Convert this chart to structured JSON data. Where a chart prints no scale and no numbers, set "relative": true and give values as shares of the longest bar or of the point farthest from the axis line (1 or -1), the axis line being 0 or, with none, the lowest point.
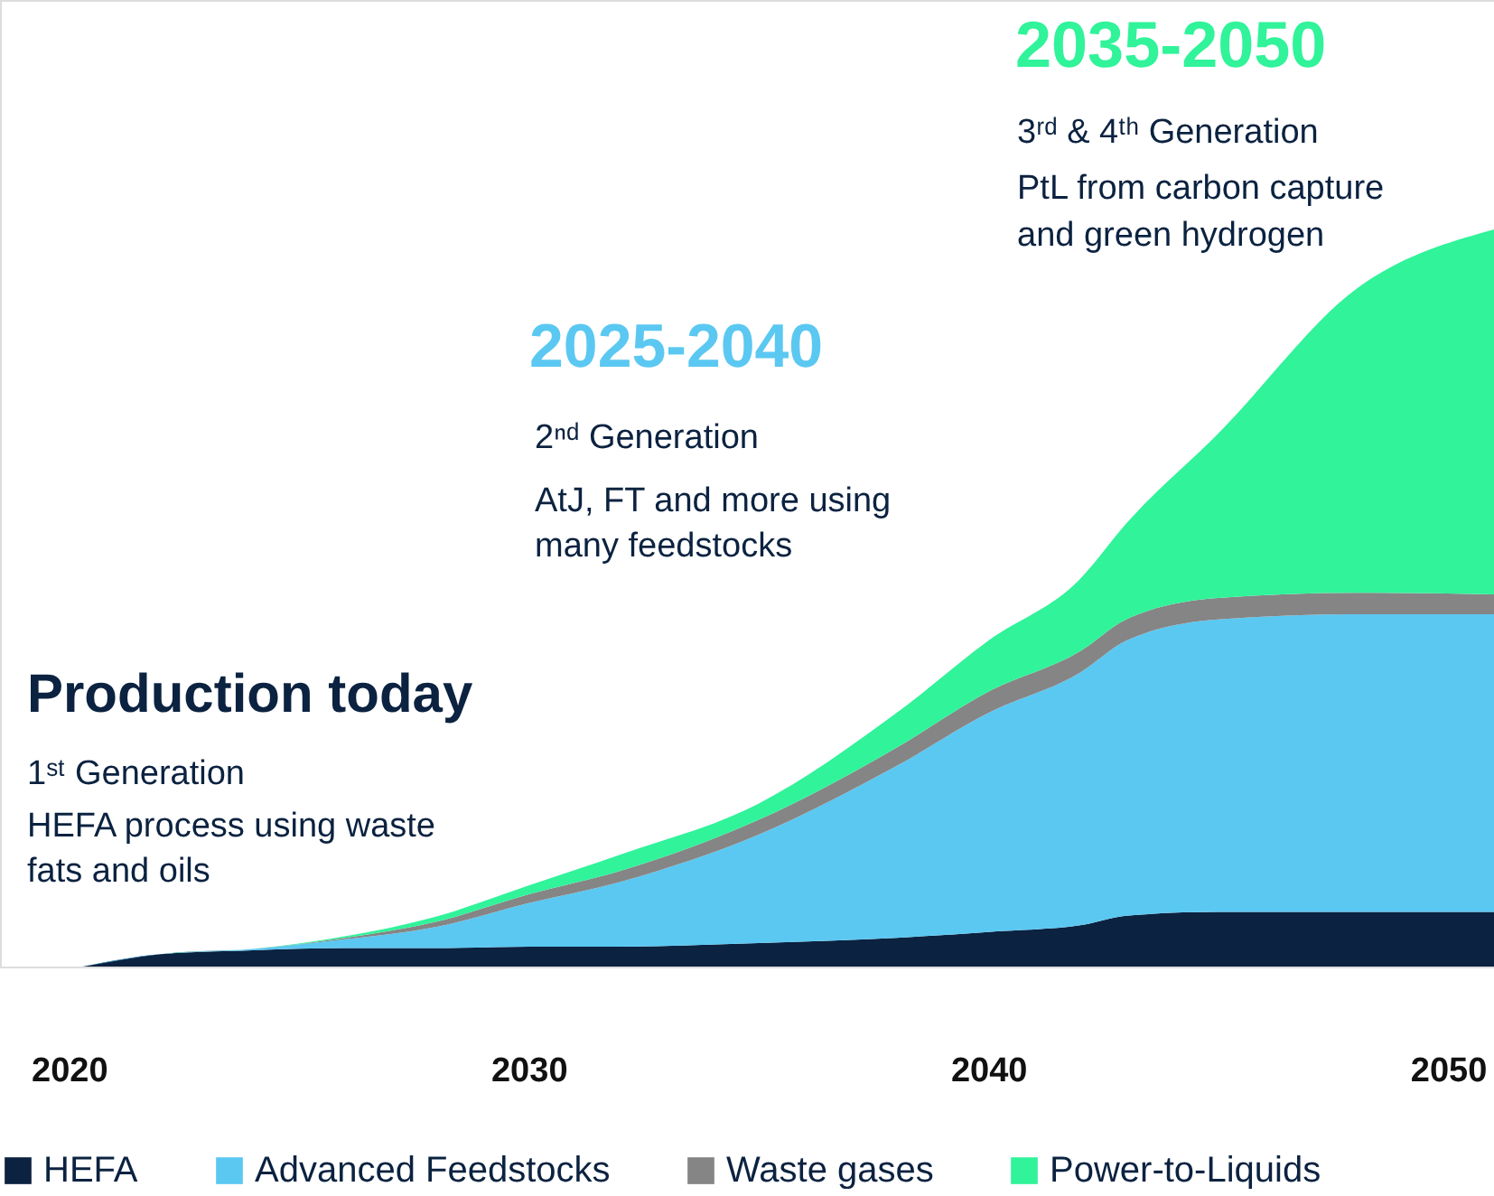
{
  "chart_data": {
    "type": "area",
    "stacked": true,
    "relative": true,
    "x": [
      2020.3,
      2022,
      2024,
      2026,
      2028,
      2030,
      2032,
      2035,
      2038,
      2040,
      2042,
      2043,
      2045,
      2048,
      2051
    ],
    "xlim": [
      2018.5,
      2051
    ],
    "xticks": [
      2020,
      2030,
      2040,
      2050
    ],
    "series": [
      {
        "name": "HEFA",
        "color": "#0b2240",
        "values": [
          0,
          0.017,
          0.022,
          0.025,
          0.025,
          0.027,
          0.027,
          0.032,
          0.039,
          0.047,
          0.056,
          0.069,
          0.074,
          0.074,
          0.074
        ]
      },
      {
        "name": "Advanced Feedstocks",
        "color": "#5bc8f2",
        "values": [
          0,
          0,
          0.002,
          0.012,
          0.029,
          0.059,
          0.088,
          0.147,
          0.233,
          0.297,
          0.343,
          0.373,
          0.397,
          0.404,
          0.404
        ]
      },
      {
        "name": "Waste gases",
        "color": "#858585",
        "values": [
          0,
          0,
          0,
          0.002,
          0.007,
          0.012,
          0.015,
          0.02,
          0.025,
          0.029,
          0.029,
          0.029,
          0.029,
          0.029,
          0.027
        ]
      },
      {
        "name": "Power-to-Liquids",
        "color": "#30f39a",
        "values": [
          0,
          0,
          0,
          0.002,
          0.007,
          0.012,
          0.022,
          0.022,
          0.047,
          0.069,
          0.098,
          0.13,
          0.223,
          0.412,
          0.495
        ]
      }
    ],
    "annotations": [
      "Production today",
      "1ˢᵗ Generation",
      "HEFA process using waste",
      "fats and oils",
      "2025-2040",
      "2ⁿᵈ Generation",
      "AtJ, FT and more using",
      "many feedstocks",
      "2035-2050",
      "3ʳᵈ & 4ᵗʰ Generation",
      "PtL from carbon capture",
      "and green hydrogen"
    ],
    "legend": "bottom",
    "grid": false
  }
}
